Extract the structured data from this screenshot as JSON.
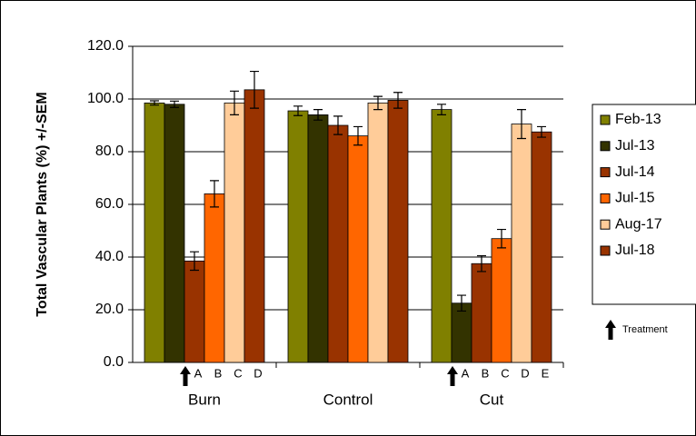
{
  "chart_data": {
    "type": "bar",
    "y_label": "Total Vascular Plants (%) +/-SEM",
    "categories": [
      "Burn",
      "Control",
      "Cut"
    ],
    "series": [
      {
        "name": "Feb-13",
        "color": "#808000",
        "values": [
          98.5,
          95.5,
          96
        ],
        "errors": [
          0.8,
          1.8,
          2
        ]
      },
      {
        "name": "Jul-13",
        "color": "#333300",
        "values": [
          98,
          94,
          22.5
        ],
        "errors": [
          1.2,
          2,
          3
        ]
      },
      {
        "name": "Jul-14",
        "color": "#993300",
        "values": [
          38.5,
          90,
          37.5
        ],
        "errors": [
          3.5,
          3.5,
          3
        ]
      },
      {
        "name": "Jul-15",
        "color": "#FF6600",
        "values": [
          64,
          86,
          47
        ],
        "errors": [
          5,
          3.5,
          3.5
        ]
      },
      {
        "name": "Aug-17",
        "color": "#FFCC99",
        "values": [
          98.5,
          98.5,
          90.5
        ],
        "errors": [
          4.5,
          2.5,
          5.5
        ]
      },
      {
        "name": "Jul-18",
        "color": "#993300",
        "values": [
          103.5,
          99.5,
          87.5
        ],
        "errors": [
          7,
          3,
          2
        ]
      }
    ],
    "letters": [
      [
        null,
        null,
        "A",
        "B",
        "C",
        "D"
      ],
      [
        null,
        null,
        null,
        null,
        null,
        null
      ],
      [
        null,
        "A",
        "B",
        "C",
        "D",
        "E"
      ]
    ],
    "treatment_label": "Treatment",
    "ylim": [
      0,
      120
    ],
    "yticks": [
      {
        "value": 0,
        "label": "0.0"
      },
      {
        "value": 20,
        "label": "20.0"
      },
      {
        "value": 40,
        "label": "40.0"
      },
      {
        "value": 60,
        "label": "60.0"
      },
      {
        "value": 80,
        "label": "80.0"
      },
      {
        "value": 100,
        "label": "100.0"
      },
      {
        "value": 120,
        "label": "120.0"
      }
    ],
    "grid": true
  }
}
